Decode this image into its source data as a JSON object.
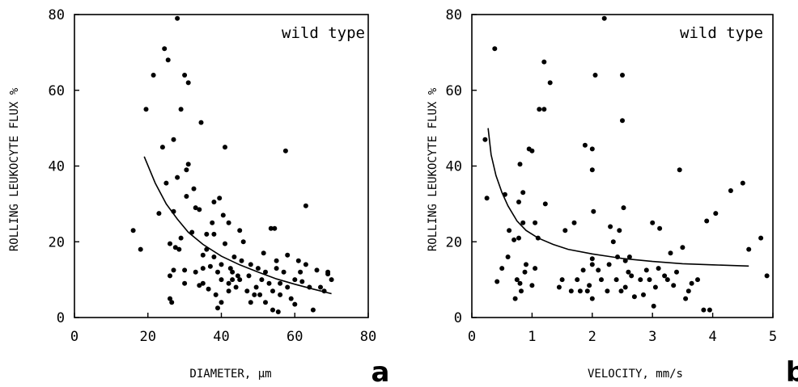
{
  "chart_data": [
    {
      "type": "scatter",
      "panel": "a",
      "annotation": "wild type",
      "xlabel": "DIAMETER, µm",
      "ylabel": "ROLLING LEUKOCYTE FLUX %",
      "xlim": [
        0,
        80
      ],
      "ylim": [
        0,
        80
      ],
      "xticks": [
        0,
        20,
        40,
        60,
        80
      ],
      "yticks": [
        0,
        20,
        40,
        60,
        80
      ],
      "grid": false,
      "fit_curve": {
        "x": [
          19,
          22,
          25,
          28,
          31,
          35,
          40,
          45,
          50,
          55,
          60,
          65,
          70
        ],
        "y": [
          42.5,
          35.5,
          30,
          26,
          22.5,
          19.3,
          16.2,
          13.9,
          12,
          10.2,
          8.8,
          7.5,
          6.3
        ]
      },
      "points": [
        [
          16,
          23
        ],
        [
          18,
          18
        ],
        [
          19.5,
          55
        ],
        [
          21.5,
          64
        ],
        [
          23,
          27.5
        ],
        [
          24,
          45
        ],
        [
          24.5,
          71
        ],
        [
          25,
          35.5
        ],
        [
          25.5,
          68
        ],
        [
          26,
          19.5
        ],
        [
          26,
          11
        ],
        [
          26,
          5
        ],
        [
          26.5,
          4
        ],
        [
          27,
          12.5
        ],
        [
          27,
          28
        ],
        [
          27.5,
          18.5
        ],
        [
          27,
          47
        ],
        [
          28,
          79
        ],
        [
          28,
          37
        ],
        [
          28.5,
          18
        ],
        [
          29,
          55
        ],
        [
          29,
          21
        ],
        [
          30,
          64
        ],
        [
          30,
          12.5
        ],
        [
          30,
          9
        ],
        [
          30.5,
          32
        ],
        [
          30.5,
          39
        ],
        [
          31,
          40.5
        ],
        [
          31,
          62
        ],
        [
          32,
          22.5
        ],
        [
          32.5,
          34
        ],
        [
          33,
          29
        ],
        [
          33,
          12
        ],
        [
          34,
          28.5
        ],
        [
          34,
          8.5
        ],
        [
          34.5,
          51.5
        ],
        [
          35,
          9
        ],
        [
          35,
          16.5
        ],
        [
          35,
          13
        ],
        [
          36,
          18
        ],
        [
          36,
          22
        ],
        [
          36.5,
          7.5
        ],
        [
          37,
          13.5
        ],
        [
          37.5,
          25
        ],
        [
          38,
          30.5
        ],
        [
          38,
          22
        ],
        [
          38,
          16
        ],
        [
          38.5,
          6
        ],
        [
          39,
          2.5
        ],
        [
          39,
          12
        ],
        [
          39.5,
          31.5
        ],
        [
          40,
          4
        ],
        [
          40,
          10
        ],
        [
          40,
          14
        ],
        [
          40.5,
          27
        ],
        [
          41,
          45
        ],
        [
          41,
          19.5
        ],
        [
          42,
          9
        ],
        [
          42,
          25
        ],
        [
          42,
          7
        ],
        [
          42.5,
          13
        ],
        [
          43,
          10
        ],
        [
          43,
          12
        ],
        [
          43.5,
          16
        ],
        [
          44,
          8
        ],
        [
          44.5,
          11
        ],
        [
          45,
          23
        ],
        [
          45,
          10
        ],
        [
          45.5,
          15
        ],
        [
          46,
          20
        ],
        [
          47,
          7
        ],
        [
          47.5,
          11
        ],
        [
          48,
          14
        ],
        [
          48,
          4
        ],
        [
          49,
          6
        ],
        [
          49.5,
          8
        ],
        [
          50,
          13
        ],
        [
          50.5,
          6
        ],
        [
          51,
          10
        ],
        [
          51.5,
          17
        ],
        [
          52,
          12
        ],
        [
          52,
          4
        ],
        [
          53,
          9
        ],
        [
          53.5,
          23.5
        ],
        [
          54,
          7
        ],
        [
          54,
          2
        ],
        [
          54.5,
          23.5
        ],
        [
          55,
          15
        ],
        [
          55,
          13
        ],
        [
          55.5,
          1.5
        ],
        [
          56,
          9
        ],
        [
          56,
          6
        ],
        [
          57,
          12
        ],
        [
          57.5,
          44
        ],
        [
          58,
          8
        ],
        [
          58,
          16.5
        ],
        [
          59,
          5
        ],
        [
          60,
          3.5
        ],
        [
          60,
          10
        ],
        [
          61,
          15
        ],
        [
          61.5,
          12
        ],
        [
          62,
          9.5
        ],
        [
          63,
          29.5
        ],
        [
          63,
          14
        ],
        [
          64,
          8
        ],
        [
          65,
          2
        ],
        [
          66,
          12.5
        ],
        [
          67,
          8
        ],
        [
          68,
          7
        ],
        [
          69,
          11.5
        ],
        [
          69,
          12
        ],
        [
          70,
          10
        ]
      ]
    },
    {
      "type": "scatter",
      "panel": "b",
      "annotation": "wild type",
      "xlabel": "VELOCITY, mm/s",
      "ylabel": "ROLLING LEUKOCYTE FLUX %",
      "xlim": [
        0,
        5
      ],
      "ylim": [
        0,
        80
      ],
      "xticks": [
        0,
        1,
        2,
        3,
        4,
        5
      ],
      "yticks": [
        0,
        20,
        40,
        60,
        80
      ],
      "grid": false,
      "fit_curve": {
        "x": [
          0.27,
          0.32,
          0.4,
          0.5,
          0.6,
          0.75,
          0.9,
          1.1,
          1.35,
          1.6,
          2,
          2.5,
          3,
          3.5,
          4,
          4.6
        ],
        "y": [
          50,
          43,
          37.5,
          33,
          29.5,
          25.5,
          23,
          21,
          19.3,
          18,
          16.8,
          15.6,
          14.8,
          14.2,
          13.9,
          13.6
        ]
      },
      "points": [
        [
          0.22,
          47
        ],
        [
          0.25,
          31.5
        ],
        [
          0.38,
          71
        ],
        [
          0.42,
          9.5
        ],
        [
          0.5,
          13
        ],
        [
          0.55,
          32.5
        ],
        [
          0.6,
          16
        ],
        [
          0.62,
          23
        ],
        [
          0.7,
          20.5
        ],
        [
          0.72,
          5
        ],
        [
          0.75,
          10
        ],
        [
          0.78,
          30.5
        ],
        [
          0.78,
          21
        ],
        [
          0.8,
          40.5
        ],
        [
          0.8,
          9
        ],
        [
          0.82,
          7
        ],
        [
          0.85,
          25
        ],
        [
          0.85,
          33
        ],
        [
          0.88,
          12
        ],
        [
          0.9,
          14
        ],
        [
          0.95,
          44.5
        ],
        [
          1.0,
          44
        ],
        [
          1.0,
          8.5
        ],
        [
          1.05,
          13
        ],
        [
          1.05,
          25
        ],
        [
          1.1,
          21
        ],
        [
          1.12,
          55
        ],
        [
          1.2,
          55
        ],
        [
          1.2,
          67.5
        ],
        [
          1.22,
          30
        ],
        [
          1.3,
          62
        ],
        [
          1.45,
          8
        ],
        [
          1.5,
          10
        ],
        [
          1.55,
          23
        ],
        [
          1.65,
          7
        ],
        [
          1.7,
          25
        ],
        [
          1.75,
          10
        ],
        [
          1.8,
          7
        ],
        [
          1.85,
          12.5
        ],
        [
          1.88,
          45.5
        ],
        [
          1.92,
          7
        ],
        [
          1.95,
          8.5
        ],
        [
          2.0,
          44.5
        ],
        [
          2.0,
          39
        ],
        [
          2.0,
          14
        ],
        [
          2.0,
          15.5
        ],
        [
          2.0,
          5
        ],
        [
          2.02,
          28
        ],
        [
          2.05,
          64
        ],
        [
          2.1,
          12.5
        ],
        [
          2.15,
          10
        ],
        [
          2.2,
          79
        ],
        [
          2.25,
          7
        ],
        [
          2.28,
          14
        ],
        [
          2.3,
          24
        ],
        [
          2.35,
          20
        ],
        [
          2.4,
          10
        ],
        [
          2.42,
          16
        ],
        [
          2.45,
          23
        ],
        [
          2.48,
          7
        ],
        [
          2.5,
          64
        ],
        [
          2.5,
          52
        ],
        [
          2.52,
          29
        ],
        [
          2.55,
          8
        ],
        [
          2.55,
          15
        ],
        [
          2.6,
          12
        ],
        [
          2.62,
          16
        ],
        [
          2.65,
          11
        ],
        [
          2.7,
          5.5
        ],
        [
          2.8,
          10
        ],
        [
          2.85,
          6
        ],
        [
          2.9,
          12.5
        ],
        [
          2.95,
          10
        ],
        [
          3.0,
          25
        ],
        [
          3.02,
          3
        ],
        [
          3.05,
          8
        ],
        [
          3.1,
          13
        ],
        [
          3.12,
          23.5
        ],
        [
          3.2,
          11
        ],
        [
          3.25,
          10
        ],
        [
          3.3,
          17
        ],
        [
          3.35,
          8.5
        ],
        [
          3.4,
          12
        ],
        [
          3.45,
          39
        ],
        [
          3.5,
          18.5
        ],
        [
          3.55,
          5
        ],
        [
          3.6,
          7
        ],
        [
          3.65,
          9
        ],
        [
          3.75,
          10
        ],
        [
          3.85,
          2
        ],
        [
          3.9,
          25.5
        ],
        [
          3.95,
          2
        ],
        [
          4.05,
          27.5
        ],
        [
          4.3,
          33.5
        ],
        [
          4.5,
          35.5
        ],
        [
          4.6,
          18
        ],
        [
          4.8,
          21
        ],
        [
          4.9,
          11
        ]
      ]
    }
  ]
}
